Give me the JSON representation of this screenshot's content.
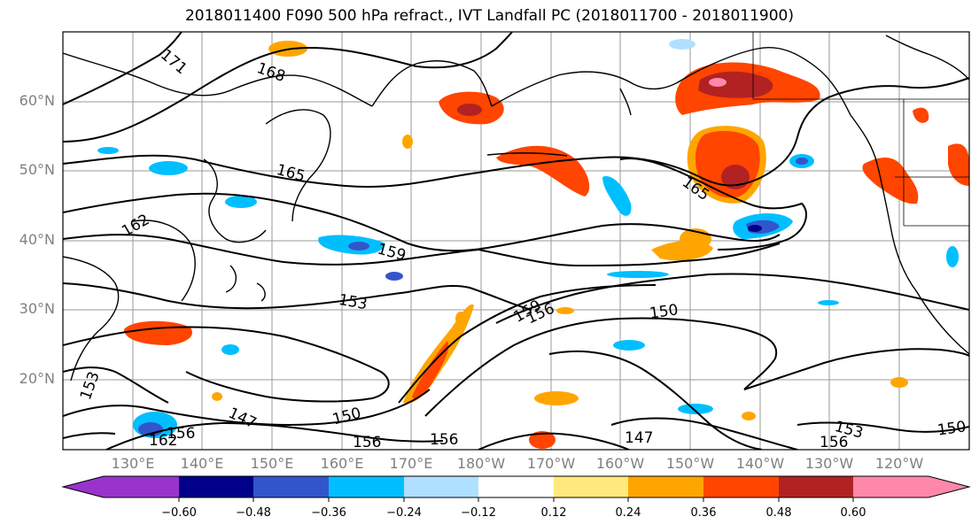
{
  "title": "2018011400 F090 500 hPa refract., IVT Landfall PC (2018011700 - 2018011900)",
  "lat_labels": [
    "60°N",
    "50°N",
    "40°N",
    "30°N",
    "20°N"
  ],
  "lon_labels": [
    "130°E",
    "140°E",
    "150°E",
    "160°E",
    "170°E",
    "180°W",
    "170°W",
    "160°W",
    "150°W",
    "140°W",
    "130°W",
    "120°W"
  ],
  "contour_labels": [
    "171",
    "168",
    "165",
    "165",
    "162",
    "159",
    "153",
    "159",
    "156",
    "150",
    "153",
    "147",
    "150",
    "156",
    "156",
    "147",
    "153",
    "156",
    "150",
    "162",
    "156"
  ],
  "colorbar": {
    "ticks": [
      "−0.60",
      "−0.48",
      "−0.36",
      "−0.24",
      "−0.12",
      "0.12",
      "0.24",
      "0.36",
      "0.48",
      "0.60"
    ],
    "colors": [
      "#9933cc",
      "#00008b",
      "#3355cc",
      "#00bfff",
      "#b0e0ff",
      "#ffffff",
      "#ffe97f",
      "#ffa500",
      "#ff4500",
      "#b22222",
      "#ff88aa"
    ]
  }
}
